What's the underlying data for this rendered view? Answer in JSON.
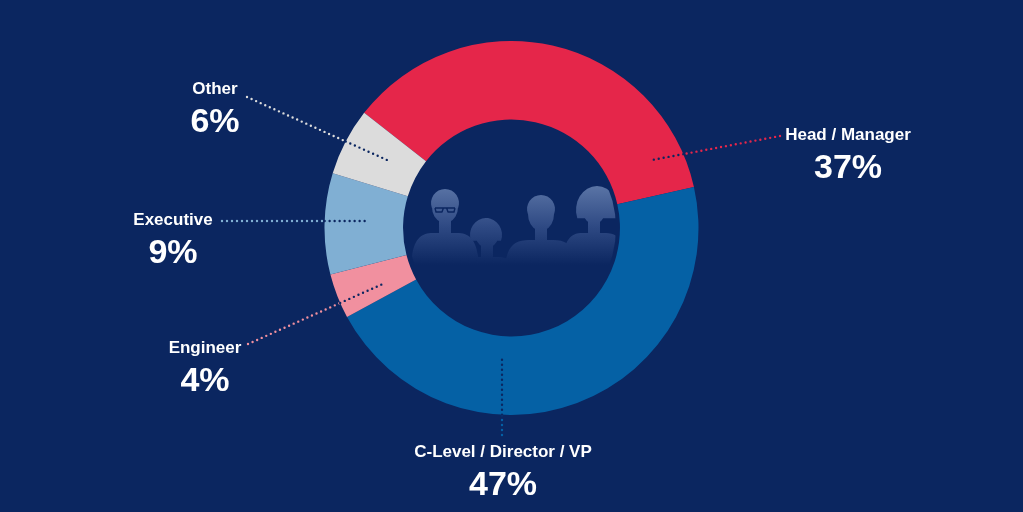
{
  "chart_data": {
    "type": "donut",
    "categories": [
      "Head / Manager",
      "C-Level / Director / VP",
      "Engineer",
      "Executive",
      "Other"
    ],
    "values": [
      37,
      47,
      4,
      9,
      6
    ],
    "colors": [
      "#e5264a",
      "#0561a5",
      "#f1909f",
      "#80afd3",
      "#dcdcdc"
    ],
    "value_labels": [
      "37%",
      "47%",
      "4%",
      "9%",
      "6%"
    ]
  }
}
